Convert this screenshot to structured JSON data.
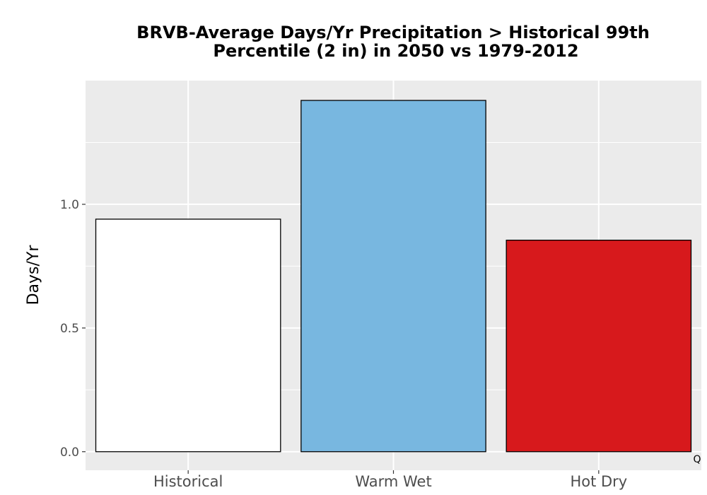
{
  "chart_data": {
    "type": "bar",
    "title": "BRVB-Average Days/Yr Precipitation > Historical 99th Percentile (2 in) in 2050 vs 1979-2012",
    "title_lines": [
      "BRVB-Average Days/Yr Precipitation > Historical 99th",
      "Percentile (2 in) in 2050 vs 1979-2012"
    ],
    "xlabel": "",
    "ylabel": "Days/Yr",
    "categories": [
      "Historical",
      "Warm Wet",
      "Hot Dry"
    ],
    "values": [
      0.94,
      1.42,
      0.855
    ],
    "colors": [
      "#ffffff",
      "#78b7e0",
      "#d7191c"
    ],
    "ylim": [
      -0.075,
      1.5
    ],
    "yticks": [
      0.0,
      0.5,
      1.0
    ],
    "ytick_labels": [
      "0.0",
      "0.5",
      "1.0"
    ],
    "grid": true,
    "legend": "none",
    "caption": "Q",
    "panel_background": "#ebebeb",
    "grid_color": "#ffffff"
  }
}
